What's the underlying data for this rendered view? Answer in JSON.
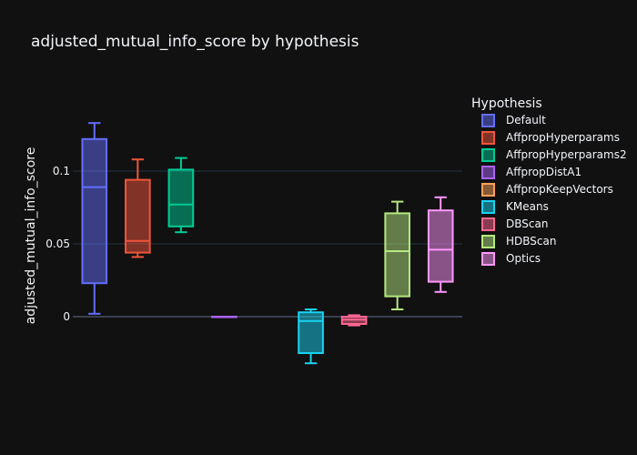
{
  "chart_data": {
    "type": "box",
    "title": "adjusted_mutual_info_score by hypothesis",
    "ylabel": "adjusted_mutual_info_score",
    "xlabel": "",
    "ylim": [
      -0.045,
      0.155
    ],
    "yticks": [
      0,
      0.05,
      0.1
    ],
    "ytick_labels": [
      "0",
      "0.05",
      "0.1"
    ],
    "grid": true,
    "legend": {
      "title": "Hypothesis",
      "position": "top-right"
    },
    "series": [
      {
        "name": "Default",
        "color": "#636efa",
        "min": 0.002,
        "q1": 0.023,
        "median": 0.089,
        "q3": 0.122,
        "max": 0.133
      },
      {
        "name": "AffpropHyperparams",
        "color": "#EF553B",
        "min": 0.041,
        "q1": 0.044,
        "median": 0.052,
        "q3": 0.094,
        "max": 0.108
      },
      {
        "name": "AffpropHyperparams2",
        "color": "#00cc96",
        "min": 0.058,
        "q1": 0.062,
        "median": 0.077,
        "q3": 0.101,
        "max": 0.109
      },
      {
        "name": "AffpropDistA1",
        "color": "#ab63fa",
        "min": 0.0,
        "q1": 0.0,
        "median": 0.0,
        "q3": 0.0,
        "max": 0.0
      },
      {
        "name": "AffpropKeepVectors",
        "color": "#FFA15A",
        "min": null,
        "q1": null,
        "median": null,
        "q3": null,
        "max": null
      },
      {
        "name": "KMeans",
        "color": "#19d3f3",
        "min": -0.032,
        "q1": -0.025,
        "median": -0.003,
        "q3": 0.003,
        "max": 0.005
      },
      {
        "name": "DBScan",
        "color": "#FF6692",
        "min": -0.006,
        "q1": -0.005,
        "median": -0.002,
        "q3": 0.0,
        "max": 0.001
      },
      {
        "name": "HDBScan",
        "color": "#B6E880",
        "min": 0.005,
        "q1": 0.014,
        "median": 0.045,
        "q3": 0.071,
        "max": 0.079
      },
      {
        "name": "Optics",
        "color": "#FF97FF",
        "min": 0.017,
        "q1": 0.024,
        "median": 0.046,
        "q3": 0.073,
        "max": 0.082
      }
    ]
  }
}
